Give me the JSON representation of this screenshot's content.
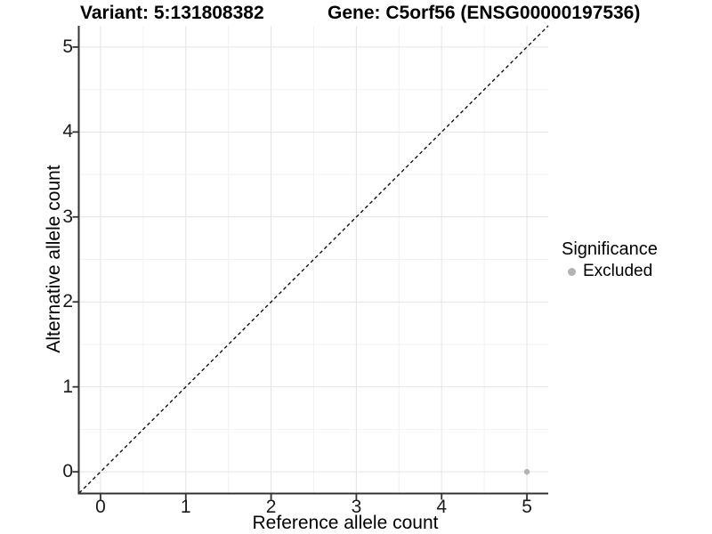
{
  "chart_data": {
    "type": "scatter",
    "title_left": "Variant: 5:131808382",
    "title_right": "Gene: C5orf56 (ENSG00000197536)",
    "xlabel": "Reference allele count",
    "ylabel": "Alternative allele count",
    "xlim": [
      -0.25,
      5.25
    ],
    "ylim": [
      -0.25,
      5.25
    ],
    "x_ticks": [
      0,
      1,
      2,
      3,
      4,
      5
    ],
    "y_ticks": [
      0,
      1,
      2,
      3,
      4,
      5
    ],
    "minor_ticks": [
      0.5,
      1.5,
      2.5,
      3.5,
      4.5
    ],
    "grid": "major+minor",
    "legend": {
      "position": "right",
      "title": "Significance",
      "items": [
        {
          "label": "Excluded",
          "color": "#b3b3b3"
        }
      ]
    },
    "identity_line": {
      "style": "dashed",
      "from": -0.25,
      "to": 5.25,
      "slope": 1,
      "intercept": 0
    },
    "series": [
      {
        "name": "Excluded",
        "color": "#b3b3b3",
        "points": [
          {
            "x": 5,
            "y": 0
          }
        ]
      }
    ],
    "colors": {
      "background": "#ffffff",
      "grid_major": "#e4e4e4",
      "grid_minor": "#f2f2f2",
      "axis_line": "#333333",
      "tick_mark": "#333333",
      "identity_line": "#111111",
      "text": "#000000"
    }
  }
}
